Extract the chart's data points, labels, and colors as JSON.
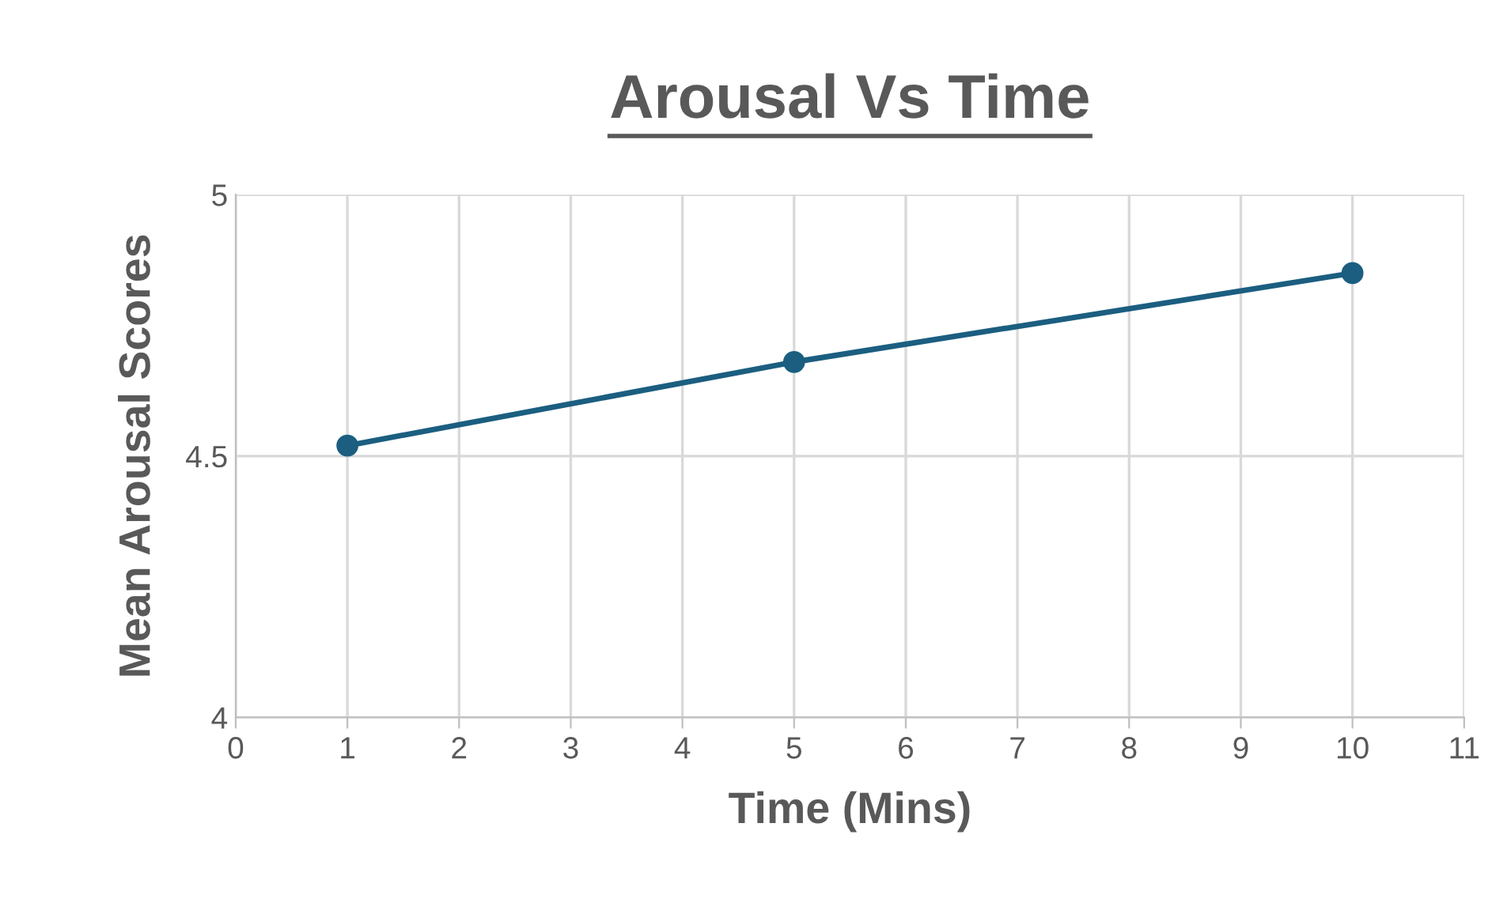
{
  "chart_data": {
    "type": "line",
    "title": "Arousal Vs Time",
    "xlabel": "Time (Mins)",
    "ylabel": "Mean Arousal Scores",
    "x": [
      1,
      5,
      10
    ],
    "series": [
      {
        "color": "#1b5e80",
        "values": [
          4.52,
          4.68,
          4.85
        ]
      }
    ],
    "xlim": [
      0,
      11
    ],
    "xticks": [
      0,
      1,
      2,
      3,
      4,
      5,
      6,
      7,
      8,
      9,
      10,
      11
    ],
    "ylim": [
      4,
      5
    ],
    "yticks": [
      4,
      4.5,
      5
    ],
    "grid": true,
    "marker": "circle",
    "line_style": "solid",
    "legend": false
  }
}
